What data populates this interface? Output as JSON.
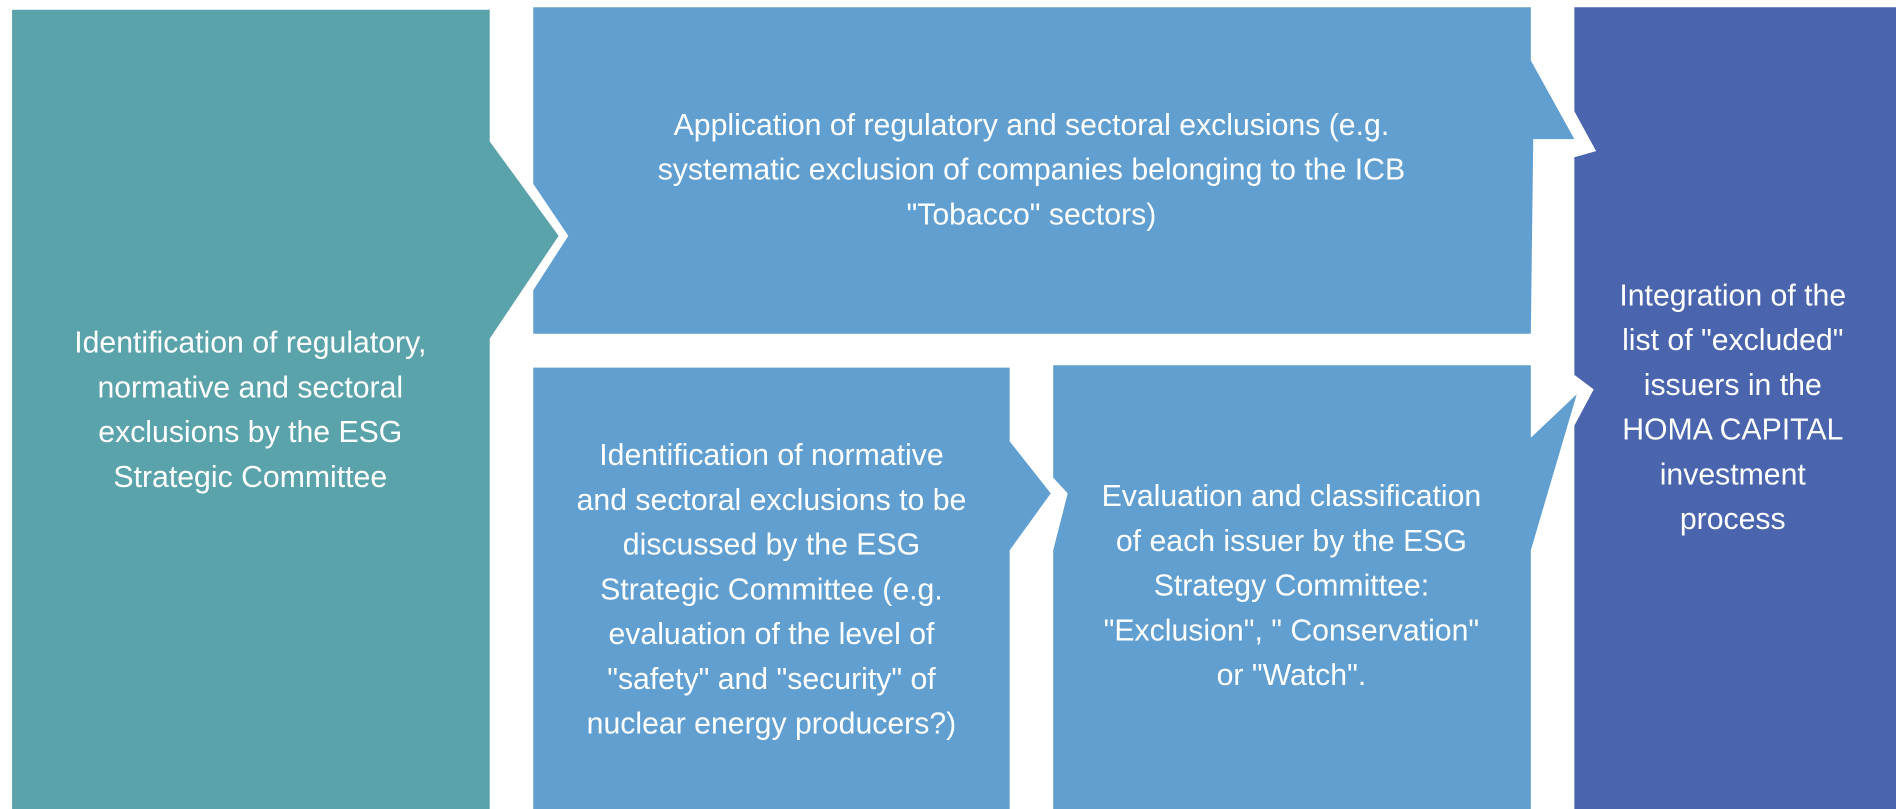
{
  "nodes": [
    {
      "lines": [
        "Identification of regulatory,",
        "normative and sectoral",
        "exclusions by the ESG",
        "Strategic Committee"
      ]
    },
    {
      "lines": [
        "Application of regulatory and sectoral exclusions (e.g.",
        "systematic exclusion of companies belonging to the ICB",
        "\"Tobacco\" sectors)"
      ]
    },
    {
      "lines": [
        "Identification of normative",
        "and sectoral exclusions to be",
        "discussed by the ESG",
        "Strategic Committee (e.g.",
        "evaluation of the level of",
        "\"safety\" and \"security\" of",
        "nuclear energy producers?)"
      ]
    },
    {
      "lines": [
        "Evaluation and classification",
        "of each issuer by the ESG",
        "Strategy Committee:",
        "\"Exclusion\", \" Conservation\"",
        "or \"Watch\"."
      ]
    },
    {
      "lines": [
        "Integration of the",
        "list of \"excluded\"",
        "issuers in the",
        "HOMA CAPITAL",
        "investment",
        "process"
      ]
    }
  ]
}
